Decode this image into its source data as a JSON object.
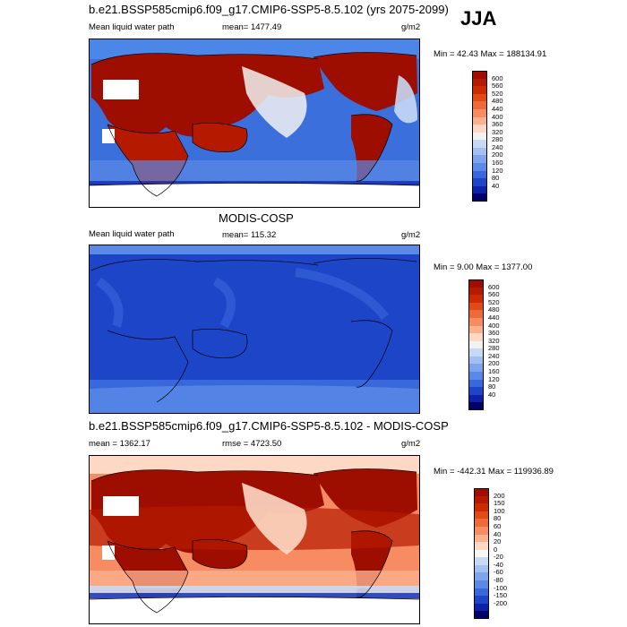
{
  "season": "JJA",
  "panels": [
    {
      "title": "b.e21.BSSP585cmip6.f09_g17.CMIP6-SSP5-8.5.102 (yrs 2075-2099)",
      "left_label": "Mean liquid water path",
      "center_label": "mean= 1477.49",
      "units": "g/m2",
      "minmax": "Min =  42.43 Max = 188134.91",
      "colorbar": {
        "labels": [
          "600",
          "560",
          "520",
          "480",
          "440",
          "400",
          "360",
          "320",
          "280",
          "240",
          "200",
          "160",
          "120",
          "80",
          "40"
        ],
        "colors": [
          "#9e0e00",
          "#b51a00",
          "#cc2a00",
          "#e24a16",
          "#ef6a3a",
          "#f78c62",
          "#fbb08e",
          "#fdd9c5",
          "#f2f2f2",
          "#c8d9f5",
          "#a3c0f2",
          "#7ea5ec",
          "#5a89e6",
          "#3868dc",
          "#1c45c8",
          "#0d22a8",
          "#00006a"
        ]
      },
      "chart_data": {
        "type": "heatmap",
        "title": "b.e21.BSSP585cmip6.f09_g17.CMIP6-SSP5-8.5.102 (yrs 2075-2099)",
        "variable": "Mean liquid water path",
        "units": "g/m2",
        "mean": 1477.49,
        "min": 42.43,
        "max": 188134.91,
        "contour_levels": [
          40,
          80,
          120,
          160,
          200,
          240,
          280,
          320,
          360,
          400,
          440,
          480,
          520,
          560,
          600
        ]
      }
    },
    {
      "title": "MODIS-COSP",
      "left_label": "Mean liquid water path",
      "center_label": "mean= 115.32",
      "units": "g/m2",
      "minmax": "Min =   9.00 Max = 1377.00",
      "colorbar": {
        "labels": [
          "600",
          "560",
          "520",
          "480",
          "440",
          "400",
          "360",
          "320",
          "280",
          "240",
          "200",
          "160",
          "120",
          "80",
          "40"
        ],
        "colors": [
          "#9e0e00",
          "#b51a00",
          "#cc2a00",
          "#e24a16",
          "#ef6a3a",
          "#f78c62",
          "#fbb08e",
          "#fdd9c5",
          "#f2f2f2",
          "#c8d9f5",
          "#a3c0f2",
          "#7ea5ec",
          "#5a89e6",
          "#3868dc",
          "#1c45c8",
          "#0d22a8",
          "#00006a"
        ]
      },
      "chart_data": {
        "type": "heatmap",
        "title": "MODIS-COSP",
        "variable": "Mean liquid water path",
        "units": "g/m2",
        "mean": 115.32,
        "min": 9.0,
        "max": 1377.0,
        "contour_levels": [
          40,
          80,
          120,
          160,
          200,
          240,
          280,
          320,
          360,
          400,
          440,
          480,
          520,
          560,
          600
        ]
      }
    },
    {
      "title": "b.e21.BSSP585cmip6.f09_g17.CMIP6-SSP5-8.5.102 - MODIS-COSP",
      "left_label": "mean = 1362.17",
      "center_label": "rmse = 4723.50",
      "units": "g/m2",
      "minmax": "Min = -442.31 Max = 119936.89",
      "colorbar": {
        "labels": [
          "200",
          "150",
          "100",
          "80",
          "60",
          "40",
          "20",
          "0",
          "-20",
          "-40",
          "-60",
          "-80",
          "-100",
          "-150",
          "-200"
        ],
        "colors": [
          "#9e0e00",
          "#b51a00",
          "#cc2a00",
          "#e24a16",
          "#ef6a3a",
          "#f78c62",
          "#fbb08e",
          "#fdd9c5",
          "#f7f7f7",
          "#c8d9f5",
          "#a3c0f2",
          "#7ea5ec",
          "#5a89e6",
          "#3868dc",
          "#1c45c8",
          "#0d22a8",
          "#00006a"
        ]
      },
      "chart_data": {
        "type": "heatmap",
        "title": "b.e21.BSSP585cmip6.f09_g17.CMIP6-SSP5-8.5.102 - MODIS-COSP",
        "units": "g/m2",
        "mean": 1362.17,
        "rmse": 4723.5,
        "min": -442.31,
        "max": 119936.89,
        "contour_levels": [
          -200,
          -150,
          -100,
          -80,
          -60,
          -40,
          -20,
          0,
          20,
          40,
          60,
          80,
          100,
          150,
          200
        ]
      }
    }
  ]
}
